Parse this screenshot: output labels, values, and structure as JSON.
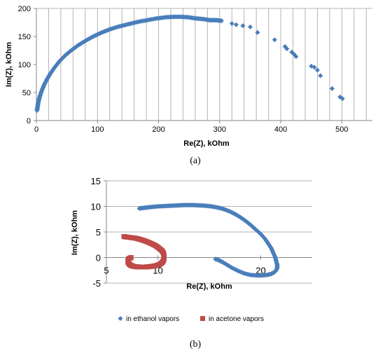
{
  "chart_data": [
    {
      "type": "scatter",
      "caption": "(a)",
      "xlabel": "Re(Z), kOhm",
      "ylabel": "Im(Z), kOhm",
      "xlim": [
        0,
        550
      ],
      "ylim": [
        0,
        200
      ],
      "xticks": [
        0,
        100,
        200,
        300,
        400,
        500
      ],
      "yticks": [
        0,
        50,
        100,
        150,
        200
      ],
      "grid": "vertical",
      "legend": "none",
      "marker": "diamond",
      "color": "#4a7ebb",
      "series": [
        {
          "x": [
            1,
            2,
            3,
            5,
            8,
            12,
            17,
            23,
            30,
            38,
            47,
            57,
            68,
            80,
            93,
            107,
            121,
            136,
            151,
            166,
            181,
            196,
            210,
            224,
            237,
            250,
            262,
            273,
            284,
            294,
            303,
            320,
            327,
            338,
            350,
            362,
            390,
            407,
            410,
            418,
            422,
            425,
            450,
            455,
            460,
            465,
            484,
            497,
            501
          ],
          "y": [
            18,
            25,
            32,
            41,
            51,
            62,
            73,
            84,
            95,
            106,
            116,
            125,
            134,
            142,
            150,
            157,
            163,
            168,
            172,
            176,
            179,
            182,
            184,
            185,
            185,
            184,
            182,
            181,
            179,
            179,
            178,
            173,
            171,
            169,
            167,
            157,
            144,
            132,
            128,
            122,
            118,
            114,
            97,
            95,
            90,
            80,
            57,
            42,
            39
          ]
        }
      ]
    },
    {
      "type": "scatter",
      "caption": "(b)",
      "xlabel": "Re(Z), kOhm",
      "ylabel": "Im(Z), kOhm",
      "xlim": [
        5,
        25
      ],
      "ylim": [
        -5,
        15
      ],
      "xticks": [
        5,
        10,
        20
      ],
      "yticks": [
        -5,
        0,
        5,
        10,
        15
      ],
      "grid": "horizontal",
      "legend": "bottom",
      "series": [
        {
          "name": "in ethanol vapors",
          "color": "#4a7ebb",
          "marker": "diamond",
          "x": [
            8.2,
            8.6,
            9.0,
            9.5,
            10.0,
            10.5,
            11.0,
            11.5,
            12.0,
            12.5,
            13.0,
            13.5,
            14.0,
            14.5,
            15.0,
            15.5,
            16.0,
            16.5,
            17.0,
            17.5,
            18.0,
            18.5,
            19.0,
            19.5,
            20.0,
            20.4,
            20.7,
            21.0,
            21.2,
            21.4,
            21.5,
            21.6,
            21.6,
            21.5,
            21.3,
            21.0,
            20.6,
            20.1,
            19.6,
            19.0,
            18.4,
            17.8,
            17.2,
            16.7,
            16.3,
            16.0,
            15.8,
            15.6
          ],
          "y": [
            9.6,
            9.7,
            9.8,
            9.9,
            10.0,
            10.05,
            10.1,
            10.15,
            10.2,
            10.25,
            10.25,
            10.25,
            10.2,
            10.15,
            10.05,
            9.9,
            9.7,
            9.4,
            9.0,
            8.5,
            7.9,
            7.2,
            6.4,
            5.5,
            4.6,
            3.7,
            2.8,
            1.9,
            1.0,
            0.1,
            -0.7,
            -1.4,
            -2.0,
            -2.5,
            -2.9,
            -3.2,
            -3.4,
            -3.5,
            -3.5,
            -3.4,
            -3.1,
            -2.6,
            -2.0,
            -1.4,
            -0.9,
            -0.6,
            -0.4,
            -0.3
          ]
        },
        {
          "name": "in acetone vapors",
          "color": "#be4b48",
          "marker": "square",
          "x": [
            6.7,
            7.0,
            7.4,
            7.8,
            8.2,
            8.6,
            9.0,
            9.4,
            9.8,
            10.1,
            10.4,
            10.55,
            10.6,
            10.6,
            10.55,
            10.4,
            10.2,
            9.9,
            9.5,
            9.1,
            8.7,
            8.3,
            7.9,
            7.6,
            7.35,
            7.2,
            7.1,
            7.1,
            7.2,
            7.4
          ],
          "y": [
            4.1,
            4.0,
            3.9,
            3.8,
            3.6,
            3.35,
            3.05,
            2.7,
            2.3,
            1.85,
            1.35,
            0.85,
            0.35,
            -0.15,
            -0.6,
            -1.0,
            -1.3,
            -1.55,
            -1.7,
            -1.8,
            -1.85,
            -1.85,
            -1.8,
            -1.7,
            -1.5,
            -1.25,
            -0.9,
            -0.5,
            -0.2,
            0.0
          ]
        }
      ]
    }
  ]
}
